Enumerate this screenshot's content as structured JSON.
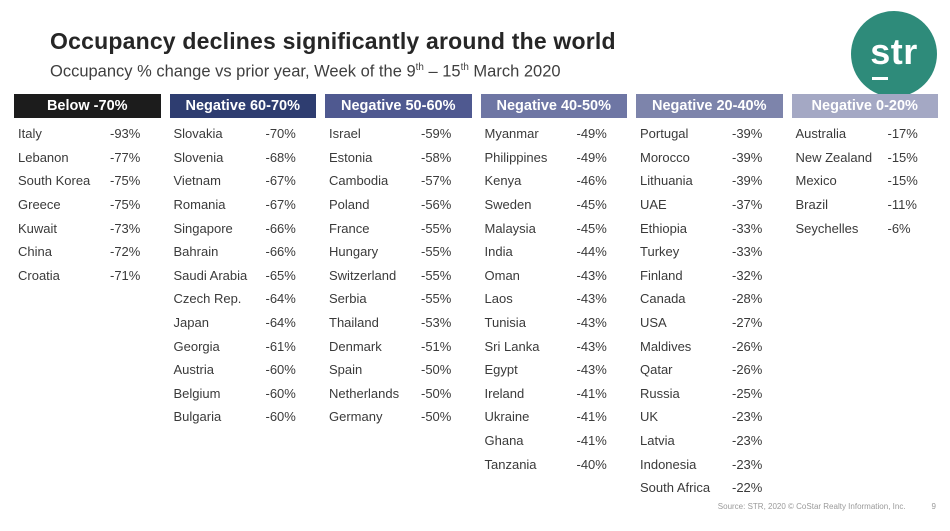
{
  "title": "Occupancy declines significantly around the world",
  "subtitle": {
    "part1": "Occupancy % change vs prior year, Week of the 9",
    "sup1": "th",
    "part2": " – 15",
    "sup2": "th",
    "part3": " March 2020"
  },
  "logo": {
    "text": "str",
    "bg_color": "#2e8b7a"
  },
  "chart_data": {
    "type": "table",
    "title": "Occupancy declines significantly around the world",
    "subtitle": "Occupancy % change vs prior year, Week of the 9th – 15th March 2020",
    "unit": "% occupancy change vs prior year",
    "groups": [
      {
        "label": "Below -70%",
        "header_bg": "#1c1c1c",
        "rows": [
          [
            "Italy",
            -93
          ],
          [
            "Lebanon",
            -77
          ],
          [
            "South Korea",
            -75
          ],
          [
            "Greece",
            -75
          ],
          [
            "Kuwait",
            -73
          ],
          [
            "China",
            -72
          ],
          [
            "Croatia",
            -71
          ]
        ]
      },
      {
        "label": "Negative 60-70%",
        "header_bg": "#2e3d70",
        "rows": [
          [
            "Slovakia",
            -70
          ],
          [
            "Slovenia",
            -68
          ],
          [
            "Vietnam",
            -67
          ],
          [
            "Romania",
            -67
          ],
          [
            "Singapore",
            -66
          ],
          [
            "Bahrain",
            -66
          ],
          [
            "Saudi Arabia",
            -65
          ],
          [
            "Czech Rep.",
            -64
          ],
          [
            "Japan",
            -64
          ],
          [
            "Georgia",
            -61
          ],
          [
            "Austria",
            -60
          ],
          [
            "Belgium",
            -60
          ],
          [
            "Bulgaria",
            -60
          ]
        ]
      },
      {
        "label": "Negative 50-60%",
        "header_bg": "#4f5990",
        "rows": [
          [
            "Israel",
            -59
          ],
          [
            "Estonia",
            -58
          ],
          [
            "Cambodia",
            -57
          ],
          [
            "Poland",
            -56
          ],
          [
            "France",
            -55
          ],
          [
            "Hungary",
            -55
          ],
          [
            "Switzerland",
            -55
          ],
          [
            "Serbia",
            -55
          ],
          [
            "Thailand",
            -53
          ],
          [
            "Denmark",
            -51
          ],
          [
            "Spain",
            -50
          ],
          [
            "Netherlands",
            -50
          ],
          [
            "Germany",
            -50
          ]
        ]
      },
      {
        "label": "Negative 40-50%",
        "header_bg": "#6e76a4",
        "rows": [
          [
            "Myanmar",
            -49
          ],
          [
            "Philippines",
            -49
          ],
          [
            "Kenya",
            -46
          ],
          [
            "Sweden",
            -45
          ],
          [
            "Malaysia",
            -45
          ],
          [
            "India",
            -44
          ],
          [
            "Oman",
            -43
          ],
          [
            "Laos",
            -43
          ],
          [
            "Tunisia",
            -43
          ],
          [
            "Sri Lanka",
            -43
          ],
          [
            "Egypt",
            -43
          ],
          [
            "Ireland",
            -41
          ],
          [
            "Ukraine",
            -41
          ],
          [
            "Ghana",
            -41
          ],
          [
            "Tanzania",
            -40
          ]
        ]
      },
      {
        "label": "Negative 20-40%",
        "header_bg": "#7d84ab",
        "rows": [
          [
            "Portugal",
            -39
          ],
          [
            "Morocco",
            -39
          ],
          [
            "Lithuania",
            -39
          ],
          [
            "UAE",
            -37
          ],
          [
            "Ethiopia",
            -33
          ],
          [
            "Turkey",
            -33
          ],
          [
            "Finland",
            -32
          ],
          [
            "Canada",
            -28
          ],
          [
            "USA",
            -27
          ],
          [
            "Maldives",
            -26
          ],
          [
            "Qatar",
            -26
          ],
          [
            "Russia",
            -25
          ],
          [
            "UK",
            -23
          ],
          [
            "Latvia",
            -23
          ],
          [
            "Indonesia",
            -23
          ],
          [
            "South Africa",
            -22
          ]
        ]
      },
      {
        "label": "Negative 0-20%",
        "header_bg": "#a4a8c4",
        "rows": [
          [
            "Australia",
            -17
          ],
          [
            "New Zealand",
            -15
          ],
          [
            "Mexico",
            -15
          ],
          [
            "Brazil",
            -11
          ],
          [
            "Seychelles",
            -6
          ]
        ]
      }
    ]
  },
  "footer": {
    "source": "Source: STR, 2020 © CoStar Realty Information, Inc.",
    "page": "9"
  }
}
